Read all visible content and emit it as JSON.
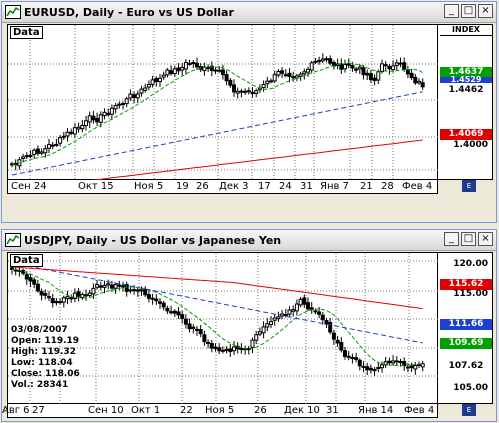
{
  "windows": [
    {
      "title": "EURUSD, Daily - Euro vs US Dollar",
      "plot_label": "Data",
      "index_label": "INDEX",
      "price_tags": [
        {
          "value": "1.4637",
          "bg": "#00a000",
          "fg": "#ffffff"
        },
        {
          "value": "1.4529",
          "bg": "#1f3fd0",
          "fg": "#ffffff"
        },
        {
          "value": "1.4462",
          "bg": "#ffffff",
          "fg": "#000000"
        },
        {
          "value": "1.4069",
          "bg": "#e00000",
          "fg": "#ffffff"
        }
      ],
      "y_ticks": [
        "1.4000"
      ],
      "x_ticks": [
        "Сен 24",
        "Окт 15",
        "Ноя 5",
        "19",
        "26",
        "Дек 3",
        "17",
        "24",
        "31",
        "Янв 7",
        "21",
        "28",
        "Фев 4"
      ],
      "corner_label": "E"
    },
    {
      "title": "USDJPY, Daily - US Dollar vs Japanese Yen",
      "plot_label": "Data",
      "price_tags": [
        {
          "value": "115.62",
          "bg": "#e00000",
          "fg": "#ffffff"
        },
        {
          "value": "111.66",
          "bg": "#1f3fd0",
          "fg": "#ffffff"
        },
        {
          "value": "109.69",
          "bg": "#00a000",
          "fg": "#ffffff"
        },
        {
          "value": "107.62",
          "bg": "#ffffff",
          "fg": "#000000"
        }
      ],
      "y_ticks": [
        "120.00",
        "115.00",
        "105.00"
      ],
      "x_ticks": [
        "Авг 6",
        "27",
        "Сен 10",
        "Окт 1",
        "22",
        "Ноя 5",
        "26",
        "Дек 10",
        "31",
        "Янв 14",
        "Фев 4"
      ],
      "info": {
        "date": "03/08/2007",
        "open": "Open: 119.19",
        "high": "High: 119.32",
        "low": "Low: 118.04",
        "close": "Close: 118.06",
        "vol": "Vol.: 28341"
      },
      "corner_label": "E"
    }
  ],
  "title_buttons": [
    "_",
    "□",
    "×"
  ],
  "colors": {
    "ma_green": "#00a000",
    "ma_blue": "#1f3fd0",
    "ma_red": "#e00000",
    "candle": "#000000",
    "frame_blue": "#7a96df"
  }
}
